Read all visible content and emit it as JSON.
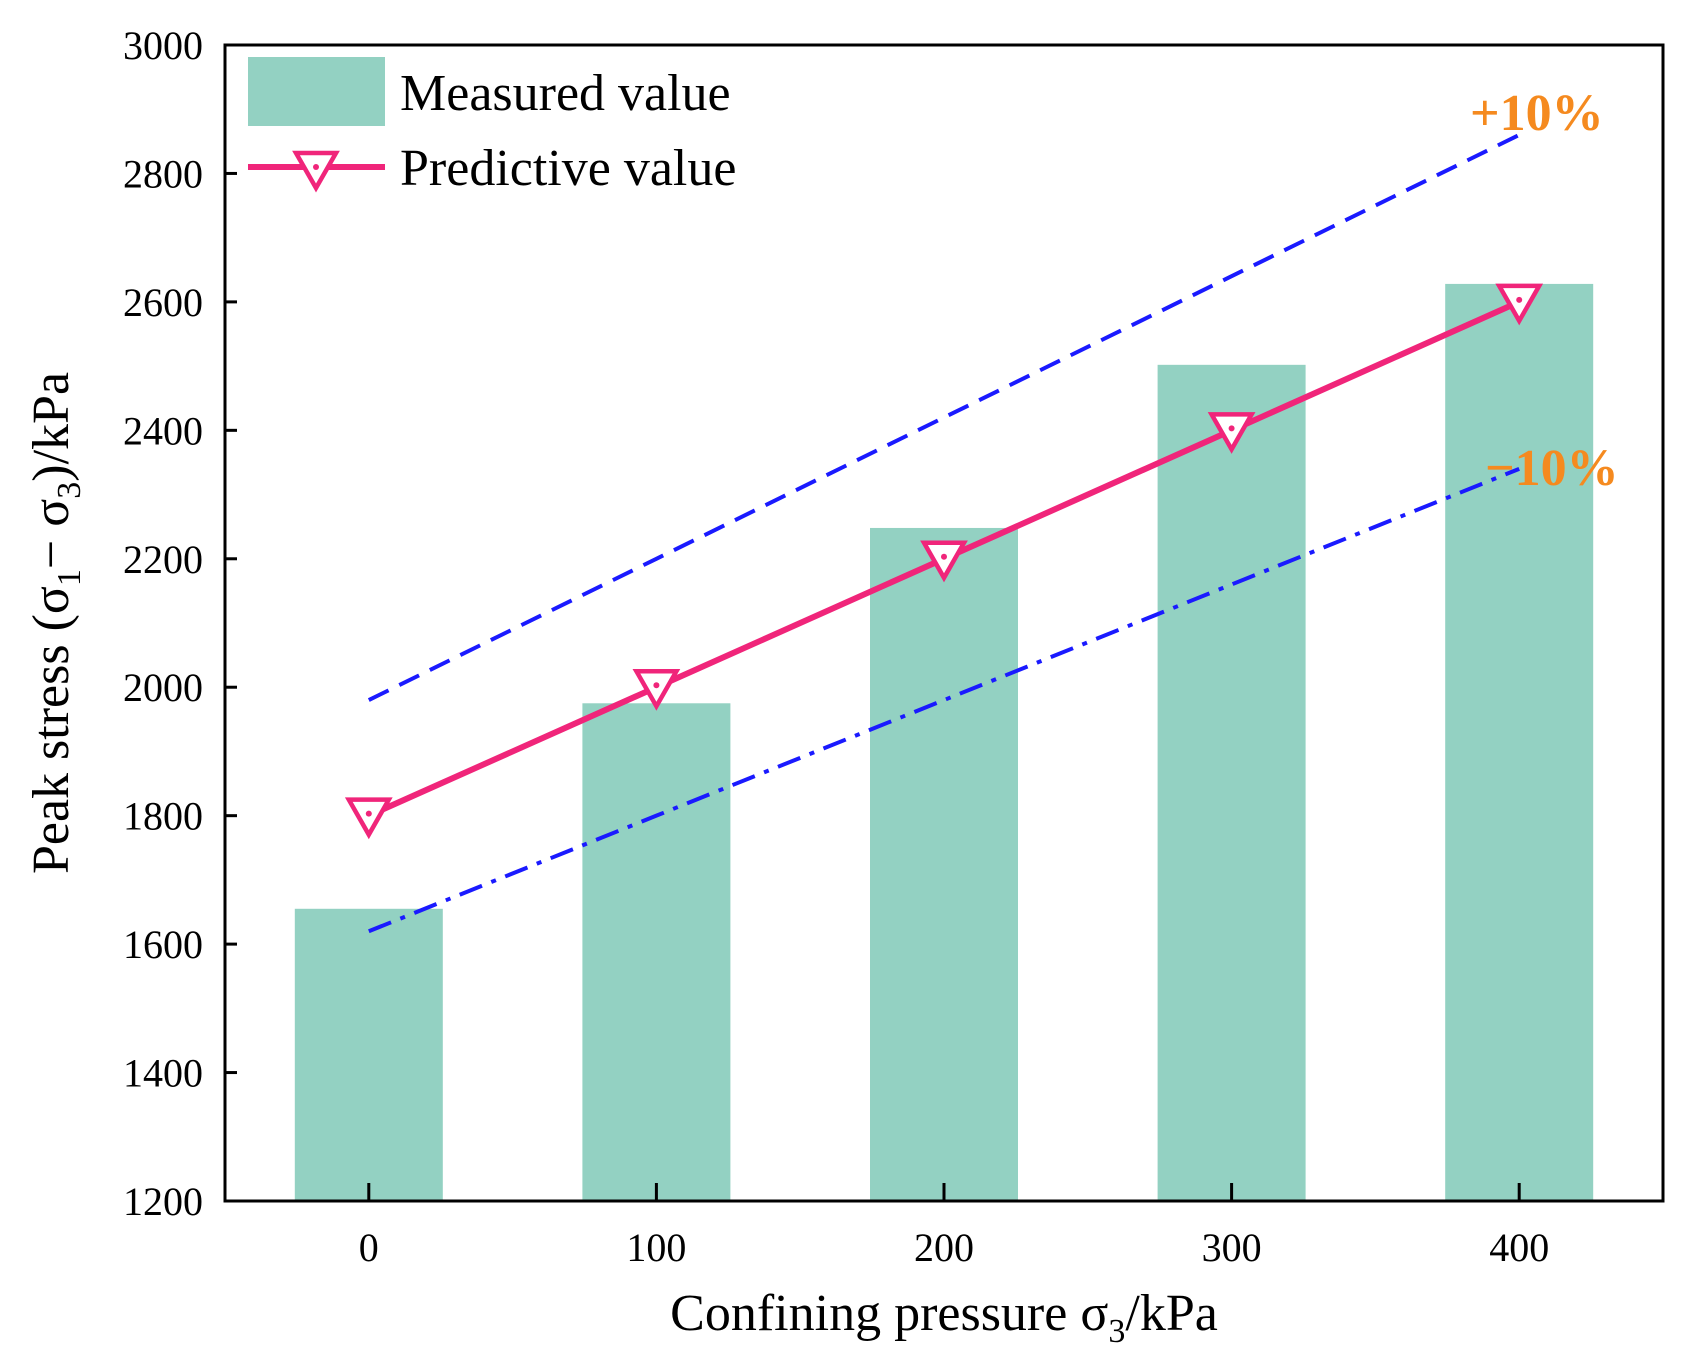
{
  "chart_data": {
    "type": "bar",
    "categories": [
      "0",
      "100",
      "200",
      "300",
      "400"
    ],
    "series": [
      {
        "name": "Measured value",
        "kind": "bar",
        "values": [
          1655,
          1975,
          2248,
          2502,
          2628
        ]
      },
      {
        "name": "Predictive value",
        "kind": "line",
        "marker": "triangle-down",
        "values": [
          1800,
          2000,
          2200,
          2400,
          2600
        ]
      },
      {
        "name": "+10%",
        "kind": "dashed-line",
        "values": [
          1980,
          2200,
          2420,
          2640,
          2860
        ]
      },
      {
        "name": "−10%",
        "kind": "dashdot-line",
        "values": [
          1620,
          1800,
          1980,
          2160,
          2340
        ]
      }
    ],
    "xlabel_main": "Confining pressure σ",
    "xlabel_sub": "3",
    "xlabel_unit": "/kPa",
    "ylabel_main": "Peak stress (σ",
    "ylabel_sub1": "1",
    "ylabel_mid": "− σ",
    "ylabel_sub2": "3",
    "ylabel_unit": ")/kPa",
    "ylim": [
      1200,
      3000
    ],
    "yticks": [
      "1200",
      "1400",
      "1600",
      "1800",
      "2000",
      "2200",
      "2400",
      "2600",
      "2800",
      "3000"
    ],
    "legend": {
      "position": "top-left",
      "measured_label": "Measured value",
      "predictive_label": "Predictive value"
    },
    "annotations": {
      "upper": "+10%",
      "lower": "−10%"
    },
    "colors": {
      "bar": "#93d1c2",
      "predictive": "#f0257a",
      "bands": "#1a1aff",
      "annotation": "#f58a1f",
      "axis": "#000000"
    },
    "grid": false
  }
}
